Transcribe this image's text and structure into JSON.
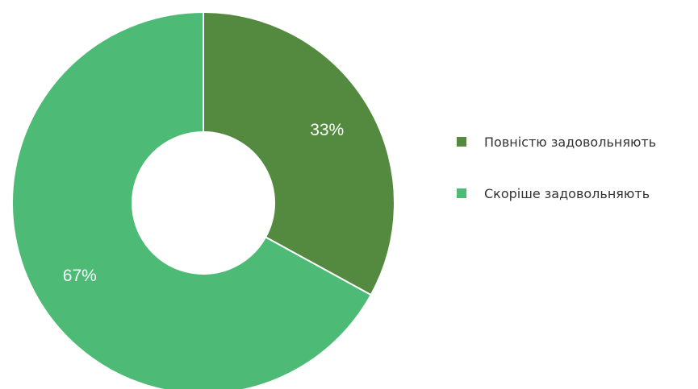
{
  "chart_data": {
    "type": "pie",
    "donut": true,
    "categories": [
      "Повністю задовольняють",
      "Скоріше задовольняють"
    ],
    "values": [
      33,
      67
    ],
    "value_labels": [
      "33%",
      "67%"
    ],
    "colors": [
      "#548a40",
      "#4dbb76"
    ],
    "legend_position": "right"
  }
}
